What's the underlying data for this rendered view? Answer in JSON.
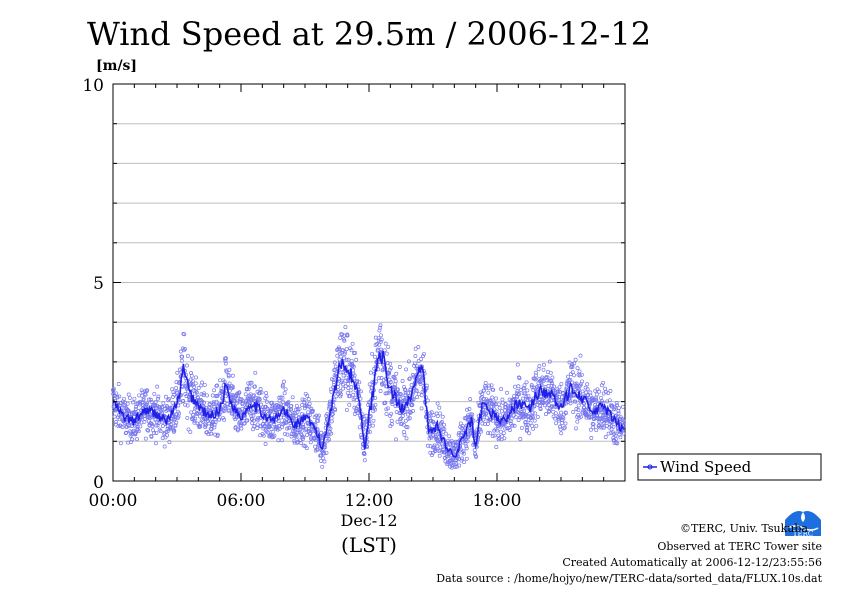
{
  "chart_data": {
    "type": "scatter",
    "title": "Wind Speed at 29.5m / 2006-12-12",
    "ylabel_unit": "[m/s]",
    "ylim": [
      0,
      10
    ],
    "yticks": [
      "0",
      "5",
      "10"
    ],
    "xlim_hours": [
      0,
      24
    ],
    "xticks": [
      "00:00",
      "06:00",
      "12:00",
      "18:00"
    ],
    "date_label": "Dec-12",
    "timezone_label": "(LST)",
    "grid": true,
    "legend_position": "right, below plot",
    "series": [
      {
        "name": "Wind Speed",
        "style": "line over 10 s sample points",
        "color": "#2020e8",
        "point_color": "#7777ee",
        "hours": [
          0.0,
          0.5,
          1.0,
          1.5,
          2.0,
          2.5,
          3.0,
          3.3,
          3.6,
          4.0,
          4.5,
          5.0,
          5.3,
          5.6,
          6.0,
          6.5,
          7.0,
          7.5,
          8.0,
          8.5,
          9.0,
          9.5,
          9.8,
          10.2,
          10.5,
          10.8,
          11.0,
          11.2,
          11.5,
          11.8,
          12.2,
          12.5,
          12.8,
          13.0,
          13.5,
          14.0,
          14.5,
          14.8,
          15.2,
          15.5,
          16.0,
          16.5,
          16.8,
          17.0,
          17.3,
          17.8,
          18.2,
          18.5,
          19.0,
          19.5,
          20.0,
          20.5,
          21.0,
          21.5,
          22.0,
          22.5,
          23.0,
          23.5,
          23.9
        ],
        "values": [
          2.0,
          1.6,
          1.5,
          1.8,
          1.7,
          1.5,
          1.9,
          2.8,
          2.2,
          1.9,
          1.6,
          1.8,
          2.4,
          1.9,
          1.6,
          2.0,
          1.7,
          1.5,
          1.8,
          1.4,
          1.6,
          1.3,
          0.8,
          1.8,
          2.6,
          3.1,
          2.8,
          2.6,
          2.2,
          0.9,
          2.3,
          3.4,
          2.7,
          2.3,
          1.8,
          2.2,
          2.9,
          1.2,
          1.4,
          1.0,
          0.6,
          1.2,
          1.5,
          0.8,
          1.9,
          1.7,
          1.5,
          1.6,
          2.0,
          1.8,
          2.3,
          2.2,
          1.8,
          2.4,
          2.1,
          1.7,
          1.9,
          1.5,
          1.3
        ],
        "spread": [
          0.55,
          0.55,
          0.5,
          0.55,
          0.55,
          0.55,
          0.6,
          0.9,
          0.75,
          0.65,
          0.55,
          0.6,
          0.75,
          0.6,
          0.55,
          0.65,
          0.6,
          0.55,
          0.6,
          0.55,
          0.55,
          0.55,
          0.5,
          0.75,
          0.9,
          1.1,
          1.0,
          0.9,
          0.8,
          0.55,
          0.85,
          1.2,
          0.95,
          0.8,
          0.65,
          0.75,
          0.9,
          0.55,
          0.55,
          0.5,
          0.4,
          0.55,
          0.6,
          0.45,
          0.65,
          0.6,
          0.55,
          0.55,
          0.65,
          0.6,
          0.7,
          0.7,
          0.6,
          0.75,
          0.7,
          0.6,
          0.65,
          0.55,
          0.5
        ]
      }
    ]
  },
  "footer": {
    "copyright": "©TERC, Univ. Tsukuba",
    "observed": "Observed at TERC Tower site",
    "created": "Created Automatically at 2006-12-12/23:55:56",
    "source": "Data source : /home/hojyo/new/TERC-data/sorted_data/FLUX.10s.dat"
  },
  "logo": {
    "text": "TERC",
    "color": "#1d6fe0"
  }
}
